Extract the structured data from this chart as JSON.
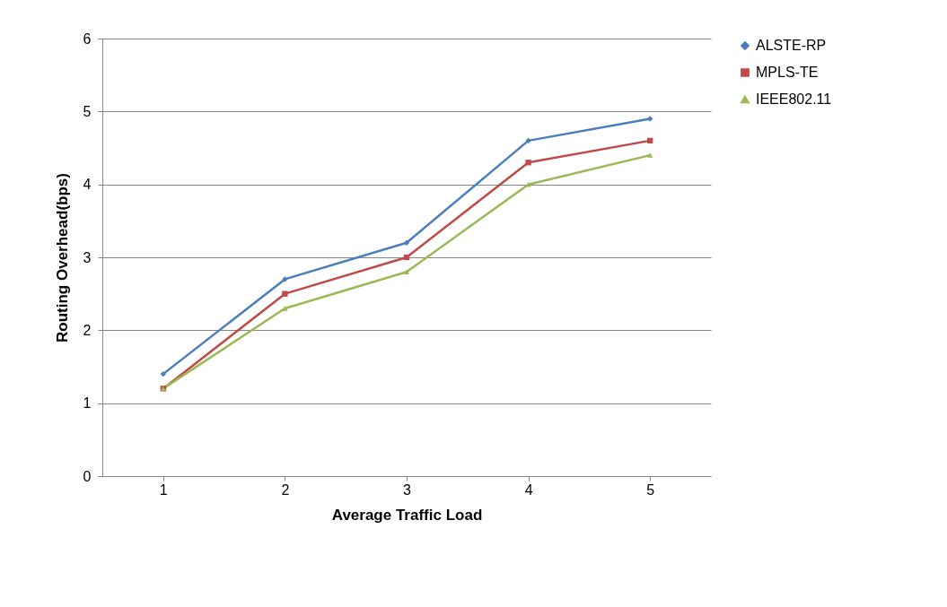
{
  "chart_data": {
    "type": "line",
    "xlabel": "Average Traffic Load",
    "ylabel": "Routing Overhead(bps)",
    "categories": [
      "1",
      "2",
      "3",
      "4",
      "5"
    ],
    "series": [
      {
        "name": "ALSTE-RP",
        "color": "#4a7ebb",
        "marker": "diamond",
        "values": [
          1.4,
          2.7,
          3.2,
          4.6,
          4.9
        ]
      },
      {
        "name": "MPLS-TE",
        "color": "#be4b48",
        "marker": "square",
        "values": [
          1.2,
          2.5,
          3.0,
          4.3,
          4.6
        ]
      },
      {
        "name": "IEEE802.11",
        "color": "#98b954",
        "marker": "triangle",
        "values": [
          1.2,
          2.3,
          2.8,
          4.0,
          4.4
        ]
      }
    ],
    "ylim": [
      0,
      6
    ],
    "yticks": [
      0,
      1,
      2,
      3,
      4,
      5,
      6
    ],
    "grid": "y",
    "legend": "right",
    "line_style": "solid"
  }
}
